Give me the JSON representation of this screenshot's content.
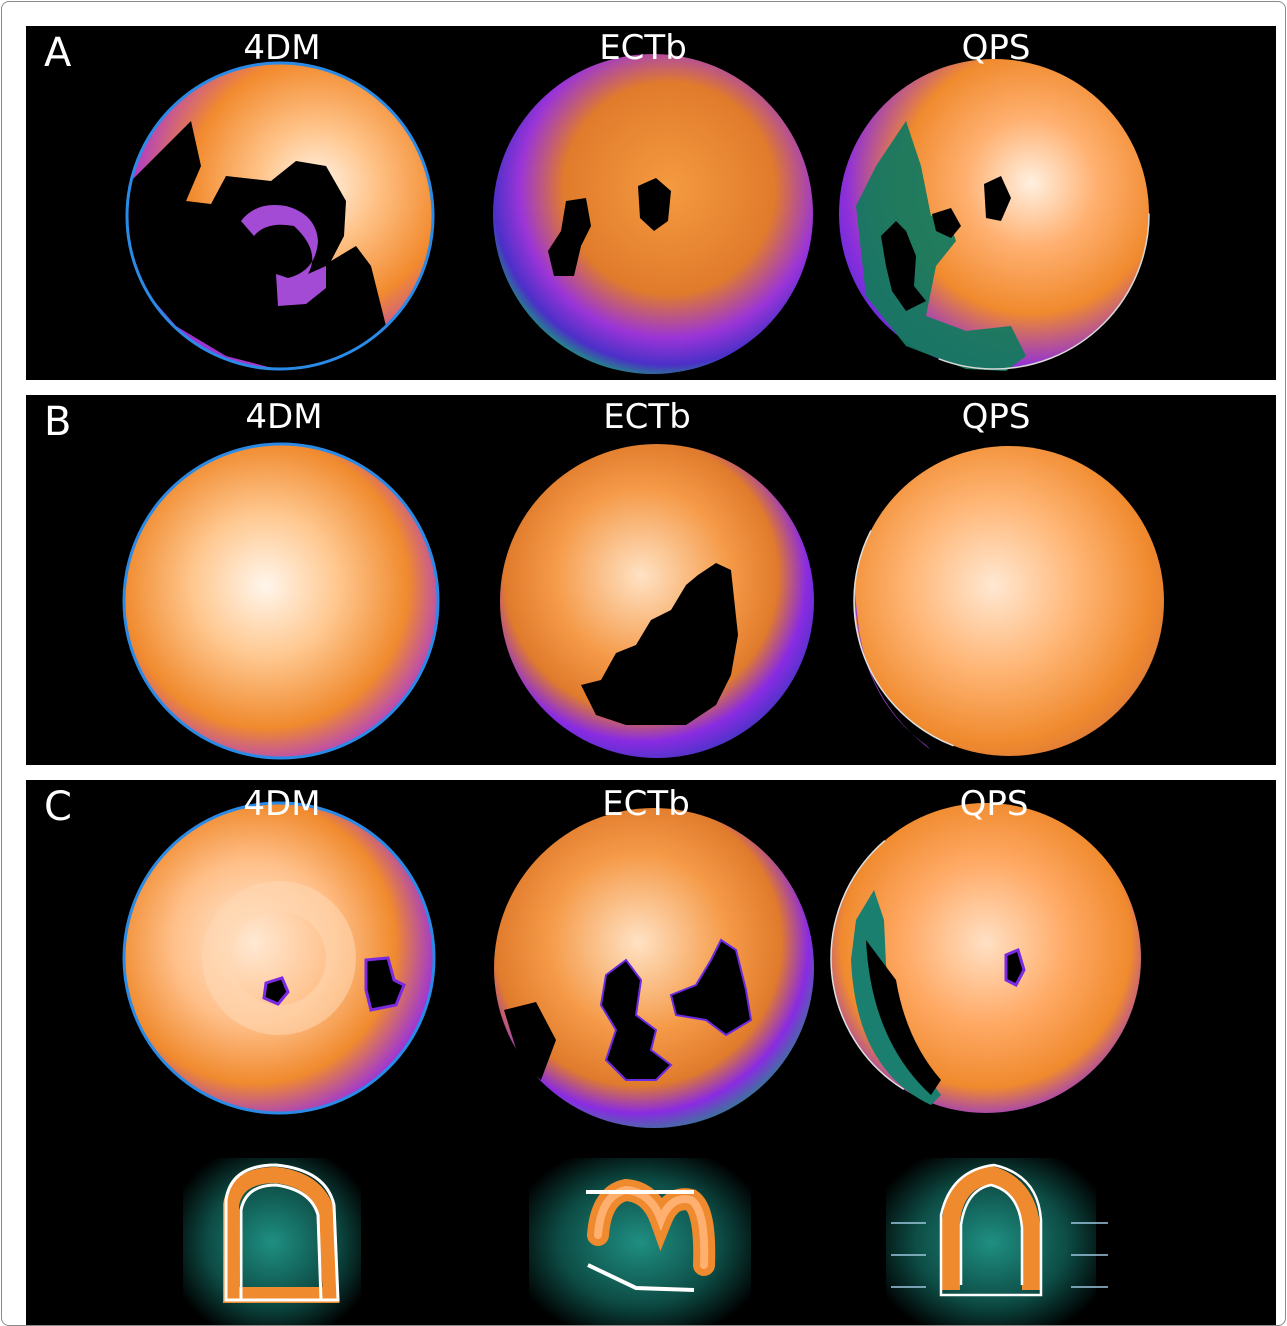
{
  "panels": [
    {
      "letter": "A",
      "columns": [
        "4DM",
        "ECTb",
        "QPS"
      ]
    },
    {
      "letter": "B",
      "columns": [
        "4DM",
        "ECTb",
        "QPS"
      ]
    },
    {
      "letter": "C",
      "columns": [
        "4DM",
        "ECTb",
        "QPS"
      ]
    }
  ],
  "colors": {
    "background": "#000000",
    "outline_blue": "#2a8ae6",
    "teal": "#1f8f82",
    "purple": "#8a2be2",
    "orange": "#f08a2e",
    "peach": "#ffd2a8",
    "white": "#ffffff"
  }
}
